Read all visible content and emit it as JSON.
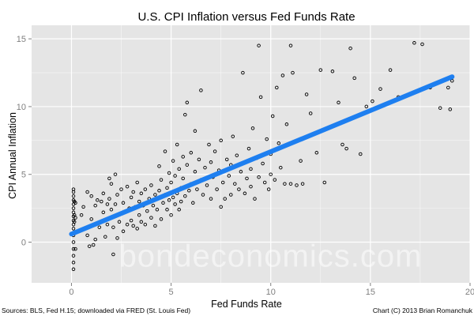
{
  "chart_data": {
    "type": "scatter",
    "title": "U.S. CPI Inflation versus Fed Funds Rate",
    "xlabel": "Fed Funds Rate",
    "ylabel": "CPI Annual Inflation",
    "xlim": [
      -2,
      20
    ],
    "ylim": [
      -3,
      16
    ],
    "xticks": [
      0,
      5,
      10,
      15,
      20
    ],
    "yticks": [
      0,
      5,
      10,
      15
    ],
    "xtick_labels": [
      "0",
      "5",
      "10",
      "15",
      "20"
    ],
    "ytick_labels": [
      "0",
      "5",
      "10",
      "15"
    ],
    "grid": true,
    "background": "#e5e5e5",
    "grid_color": "#ffffff",
    "point_color": "#000000",
    "trend_color": "#1e7ff0",
    "points": [
      [
        0.1,
        -2.0
      ],
      [
        0.1,
        -1.5
      ],
      [
        0.1,
        -1.0
      ],
      [
        0.1,
        -0.5
      ],
      [
        0.1,
        0.0
      ],
      [
        0.1,
        0.5
      ],
      [
        0.1,
        1.0
      ],
      [
        0.1,
        1.3
      ],
      [
        0.1,
        1.6
      ],
      [
        0.1,
        1.9
      ],
      [
        0.1,
        2.2
      ],
      [
        0.1,
        2.5
      ],
      [
        0.1,
        2.8
      ],
      [
        0.1,
        3.1
      ],
      [
        0.1,
        3.4
      ],
      [
        0.1,
        3.7
      ],
      [
        0.1,
        3.9
      ],
      [
        0.15,
        1.5
      ],
      [
        0.15,
        2.0
      ],
      [
        0.15,
        3.0
      ],
      [
        0.2,
        -0.5
      ],
      [
        0.2,
        1.8
      ],
      [
        0.2,
        2.9
      ],
      [
        0.5,
        2.0
      ],
      [
        0.6,
        2.6
      ],
      [
        0.8,
        0.5
      ],
      [
        0.8,
        3.7
      ],
      [
        0.9,
        -0.3
      ],
      [
        1.0,
        1.7
      ],
      [
        1.0,
        3.4
      ],
      [
        1.1,
        -0.2
      ],
      [
        1.2,
        0.2
      ],
      [
        1.2,
        2.7
      ],
      [
        1.3,
        3.1
      ],
      [
        1.4,
        1.1
      ],
      [
        1.5,
        3.0
      ],
      [
        1.6,
        2.2
      ],
      [
        1.6,
        3.6
      ],
      [
        1.7,
        0.4
      ],
      [
        1.8,
        2.8
      ],
      [
        1.8,
        1.3
      ],
      [
        1.9,
        3.2
      ],
      [
        1.9,
        4.7
      ],
      [
        2.0,
        2.4
      ],
      [
        2.0,
        4.3
      ],
      [
        2.1,
        -0.9
      ],
      [
        2.1,
        1.1
      ],
      [
        2.2,
        2.8
      ],
      [
        2.2,
        5.0
      ],
      [
        2.3,
        0.3
      ],
      [
        2.3,
        3.5
      ],
      [
        2.4,
        1.5
      ],
      [
        2.5,
        2.1
      ],
      [
        2.5,
        3.9
      ],
      [
        2.6,
        0.8
      ],
      [
        2.6,
        2.9
      ],
      [
        2.8,
        4.1
      ],
      [
        2.8,
        1.3
      ],
      [
        2.9,
        2.5
      ],
      [
        3.0,
        3.3
      ],
      [
        3.0,
        1.6
      ],
      [
        3.1,
        3.7
      ],
      [
        3.1,
        1.2
      ],
      [
        3.2,
        2.6
      ],
      [
        3.3,
        4.4
      ],
      [
        3.3,
        1.0
      ],
      [
        3.4,
        3.0
      ],
      [
        3.4,
        2.0
      ],
      [
        3.5,
        3.6
      ],
      [
        3.5,
        1.5
      ],
      [
        3.6,
        2.7
      ],
      [
        3.7,
        3.9
      ],
      [
        3.7,
        1.3
      ],
      [
        3.8,
        2.3
      ],
      [
        3.9,
        3.2
      ],
      [
        4.0,
        1.8
      ],
      [
        4.0,
        4.2
      ],
      [
        4.1,
        2.7
      ],
      [
        4.2,
        3.5
      ],
      [
        4.2,
        1.2
      ],
      [
        4.3,
        2.4
      ],
      [
        4.4,
        3.8
      ],
      [
        4.4,
        5.6
      ],
      [
        4.5,
        1.7
      ],
      [
        4.5,
        4.6
      ],
      [
        4.6,
        2.9
      ],
      [
        4.7,
        3.5
      ],
      [
        4.7,
        6.7
      ],
      [
        4.8,
        2.4
      ],
      [
        4.8,
        4.0
      ],
      [
        4.9,
        5.1
      ],
      [
        4.9,
        3.1
      ],
      [
        5.0,
        2.0
      ],
      [
        5.0,
        4.4
      ],
      [
        5.1,
        3.3
      ],
      [
        5.1,
        6.0
      ],
      [
        5.2,
        2.8
      ],
      [
        5.2,
        4.9
      ],
      [
        5.3,
        3.6
      ],
      [
        5.3,
        7.2
      ],
      [
        5.4,
        2.4
      ],
      [
        5.4,
        5.4
      ],
      [
        5.5,
        4.0
      ],
      [
        5.5,
        3.0
      ],
      [
        5.6,
        6.3
      ],
      [
        5.6,
        4.7
      ],
      [
        5.7,
        3.4
      ],
      [
        5.7,
        9.4
      ],
      [
        5.8,
        5.7
      ],
      [
        5.8,
        10.3
      ],
      [
        5.9,
        3.8
      ],
      [
        6.0,
        6.6
      ],
      [
        6.0,
        4.3
      ],
      [
        6.1,
        2.9
      ],
      [
        6.2,
        5.2
      ],
      [
        6.2,
        8.2
      ],
      [
        6.3,
        3.9
      ],
      [
        6.4,
        6.1
      ],
      [
        6.5,
        4.6
      ],
      [
        6.5,
        11.2
      ],
      [
        6.6,
        3.5
      ],
      [
        6.7,
        5.5
      ],
      [
        6.8,
        4.2
      ],
      [
        6.9,
        7.2
      ],
      [
        7.0,
        3.2
      ],
      [
        7.0,
        5.9
      ],
      [
        7.1,
        4.8
      ],
      [
        7.2,
        6.7
      ],
      [
        7.3,
        3.9
      ],
      [
        7.4,
        5.3
      ],
      [
        7.5,
        2.6
      ],
      [
        7.5,
        7.5
      ],
      [
        7.6,
        4.4
      ],
      [
        7.7,
        3.2
      ],
      [
        7.8,
        6.1
      ],
      [
        7.9,
        4.9
      ],
      [
        8.0,
        3.5
      ],
      [
        8.0,
        5.7
      ],
      [
        8.1,
        7.8
      ],
      [
        8.2,
        4.3
      ],
      [
        8.3,
        6.4
      ],
      [
        8.4,
        3.9
      ],
      [
        8.5,
        5.2
      ],
      [
        8.6,
        12.5
      ],
      [
        8.7,
        3.6
      ],
      [
        8.8,
        4.7
      ],
      [
        8.9,
        6.9
      ],
      [
        9.0,
        5.4
      ],
      [
        9.0,
        4.1
      ],
      [
        9.1,
        8.4
      ],
      [
        9.2,
        3.2
      ],
      [
        9.3,
        6.2
      ],
      [
        9.4,
        4.8
      ],
      [
        9.4,
        14.5
      ],
      [
        9.5,
        10.7
      ],
      [
        9.6,
        5.8
      ],
      [
        9.7,
        4.4
      ],
      [
        9.8,
        7.6
      ],
      [
        9.9,
        3.9
      ],
      [
        10.0,
        6.5
      ],
      [
        10.0,
        5.0
      ],
      [
        10.1,
        9.3
      ],
      [
        10.2,
        4.6
      ],
      [
        10.3,
        11.4
      ],
      [
        10.4,
        7.3
      ],
      [
        10.5,
        5.5
      ],
      [
        10.6,
        12.3
      ],
      [
        10.7,
        4.3
      ],
      [
        10.8,
        8.7
      ],
      [
        11.0,
        4.3
      ],
      [
        11.0,
        14.5
      ],
      [
        11.1,
        12.5
      ],
      [
        11.3,
        4.2
      ],
      [
        11.5,
        6.0
      ],
      [
        11.6,
        4.3
      ],
      [
        11.8,
        10.9
      ],
      [
        12.0,
        9.5
      ],
      [
        12.3,
        6.6
      ],
      [
        12.5,
        12.7
      ],
      [
        12.7,
        4.4
      ],
      [
        13.1,
        12.6
      ],
      [
        13.4,
        10.3
      ],
      [
        13.6,
        7.2
      ],
      [
        13.8,
        6.9
      ],
      [
        14.0,
        14.3
      ],
      [
        14.2,
        12.1
      ],
      [
        14.5,
        6.5
      ],
      [
        14.8,
        10.0
      ],
      [
        15.1,
        10.4
      ],
      [
        15.5,
        11.3
      ],
      [
        16.0,
        12.7
      ],
      [
        16.4,
        10.7
      ],
      [
        17.2,
        14.7
      ],
      [
        17.6,
        14.6
      ],
      [
        18.0,
        11.4
      ],
      [
        18.5,
        9.9
      ],
      [
        18.9,
        11.4
      ],
      [
        19.0,
        12.1
      ],
      [
        19.0,
        9.8
      ],
      [
        19.1,
        11.9
      ]
    ],
    "trend": [
      [
        0.0,
        0.6
      ],
      [
        19.1,
        12.2
      ]
    ],
    "watermark": "bondeconomics.com",
    "source_note": "Sources: BLS, Fed H.15; downloaded via FRED (St. Louis Fed)",
    "credit_note": "Chart (C) 2013 Brian Romanchuk"
  }
}
